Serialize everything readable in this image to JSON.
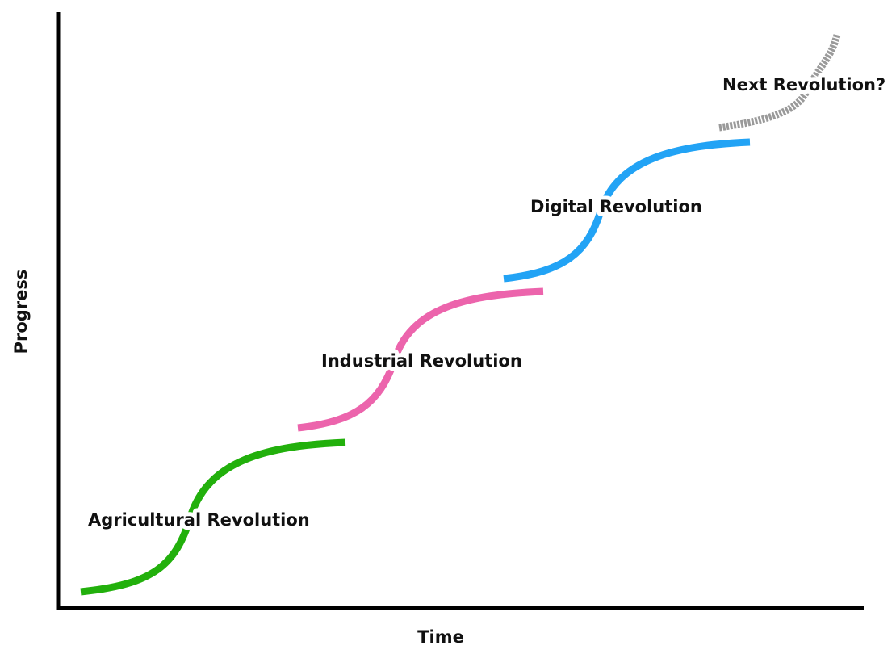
{
  "axes": {
    "x_label": "Time",
    "y_label": "Progress"
  },
  "stages": [
    {
      "label": "Agricultural Revolution"
    },
    {
      "label": "Industrial Revolution"
    },
    {
      "label": "Digital Revolution"
    },
    {
      "label": "Next Revolution?"
    }
  ]
}
